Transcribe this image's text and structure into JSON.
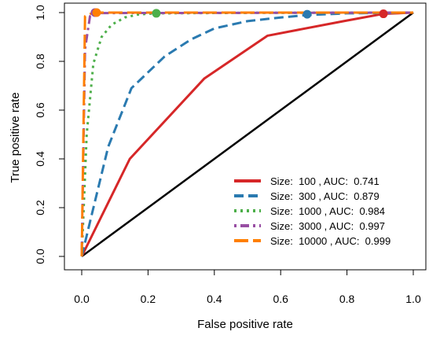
{
  "chart_data": {
    "type": "line",
    "xlabel": "False positive rate",
    "ylabel": "True positive rate",
    "xlim": [
      0,
      1
    ],
    "ylim": [
      0,
      1
    ],
    "x_ticks": [
      "0.0",
      "0.2",
      "0.4",
      "0.6",
      "0.8",
      "1.0"
    ],
    "y_ticks": [
      "0.0",
      "0.2",
      "0.4",
      "0.6",
      "0.8",
      "1.0"
    ],
    "grid": false,
    "legend_position": "bottom-right",
    "reference_line": {
      "x": [
        0,
        1
      ],
      "y": [
        0,
        1
      ],
      "color": "#000000"
    },
    "series": [
      {
        "name": "Size:  100 , AUC:  0.741",
        "color": "#d62728",
        "dash": "solid",
        "x": [
          0,
          0.145,
          0.37,
          0.56,
          0.79,
          0.91,
          1.0
        ],
        "y": [
          0,
          0.4,
          0.73,
          0.905,
          0.965,
          0.995,
          1.0
        ],
        "marker": {
          "x": 0.91,
          "y": 0.995
        }
      },
      {
        "name": "Size:  300 , AUC:  0.879",
        "color": "#2a7ab0",
        "dash": "dashed",
        "x": [
          0,
          0.03,
          0.08,
          0.15,
          0.25,
          0.33,
          0.4,
          0.5,
          0.6,
          0.68,
          0.8,
          1.0
        ],
        "y": [
          0,
          0.17,
          0.45,
          0.69,
          0.82,
          0.89,
          0.935,
          0.965,
          0.98,
          0.99,
          0.997,
          1.0
        ],
        "marker": {
          "x": 0.68,
          "y": 0.993
        }
      },
      {
        "name": "Size:  1000 , AUC:  0.984",
        "color": "#4daf4a",
        "dash": "dotted",
        "x": [
          0,
          0.015,
          0.035,
          0.06,
          0.09,
          0.13,
          0.17,
          0.22,
          0.5,
          1.0
        ],
        "y": [
          0,
          0.5,
          0.79,
          0.9,
          0.95,
          0.98,
          0.992,
          0.997,
          0.999,
          1.0
        ],
        "marker": {
          "x": 0.225,
          "y": 0.997
        }
      },
      {
        "name": "Size:  3000 , AUC:  0.997",
        "color": "#984ea3",
        "dash": "dashdot",
        "x": [
          0,
          0.01,
          0.025,
          0.04,
          1.0
        ],
        "y": [
          0,
          0.85,
          0.985,
          0.998,
          1.0
        ],
        "marker": {
          "x": 0.04,
          "y": 1.0
        }
      },
      {
        "name": "Size:  10000 , AUC:  0.999",
        "color": "#ff7f00",
        "dash": "longdash",
        "x": [
          0,
          0.01,
          0.035,
          1.0
        ],
        "y": [
          0,
          0.985,
          1.0,
          1.0
        ],
        "marker": {
          "x": 0.045,
          "y": 1.0
        }
      }
    ]
  }
}
